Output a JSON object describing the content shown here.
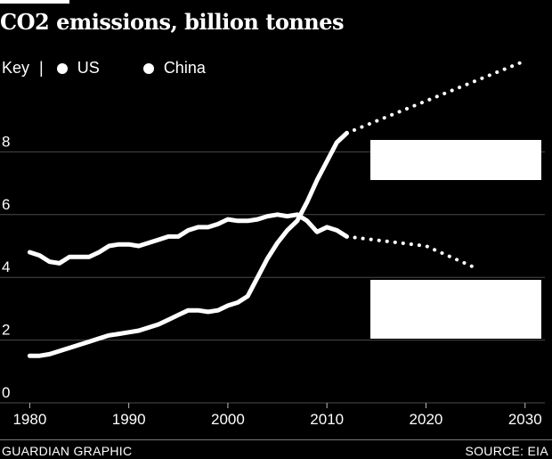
{
  "chart_data": {
    "type": "line",
    "title": "CO2 emissions, billion tonnes",
    "legend_key_label": "Key",
    "legend_separator": "|",
    "xlabel": "",
    "ylabel": "",
    "xlim": [
      1977,
      2032
    ],
    "ylim": [
      0,
      10
    ],
    "x_ticks": [
      1980,
      1990,
      2000,
      2010,
      2020,
      2030
    ],
    "y_ticks": [
      0,
      2,
      4,
      6,
      8
    ],
    "series": [
      {
        "name": "US",
        "color": "#ffffff",
        "historical": {
          "x": [
            1980,
            1981,
            1982,
            1983,
            1984,
            1985,
            1986,
            1987,
            1988,
            1989,
            1990,
            1991,
            1992,
            1993,
            1994,
            1995,
            1996,
            1997,
            1998,
            1999,
            2000,
            2001,
            2002,
            2003,
            2004,
            2005,
            2006,
            2007,
            2008,
            2009,
            2010,
            2011,
            2012
          ],
          "y": [
            4.8,
            4.7,
            4.5,
            4.45,
            4.65,
            4.65,
            4.65,
            4.8,
            5.0,
            5.05,
            5.05,
            5.0,
            5.1,
            5.2,
            5.3,
            5.3,
            5.5,
            5.6,
            5.6,
            5.7,
            5.85,
            5.8,
            5.8,
            5.85,
            5.95,
            6.0,
            5.95,
            6.0,
            5.8,
            5.45,
            5.6,
            5.5,
            5.3
          ]
        },
        "projection": {
          "x": [
            2012,
            2020,
            2025
          ],
          "y": [
            5.3,
            5.0,
            4.3
          ]
        }
      },
      {
        "name": "China",
        "color": "#ffffff",
        "historical": {
          "x": [
            1980,
            1981,
            1982,
            1983,
            1984,
            1985,
            1986,
            1987,
            1988,
            1989,
            1990,
            1991,
            1992,
            1993,
            1994,
            1995,
            1996,
            1997,
            1998,
            1999,
            2000,
            2001,
            2002,
            2003,
            2004,
            2005,
            2006,
            2007,
            2008,
            2009,
            2010,
            2011,
            2012
          ],
          "y": [
            1.5,
            1.5,
            1.55,
            1.65,
            1.75,
            1.85,
            1.95,
            2.05,
            2.15,
            2.2,
            2.25,
            2.3,
            2.4,
            2.5,
            2.65,
            2.8,
            2.95,
            2.95,
            2.9,
            2.95,
            3.1,
            3.2,
            3.4,
            4.0,
            4.6,
            5.1,
            5.5,
            5.8,
            6.4,
            7.1,
            7.7,
            8.3,
            8.6
          ]
        },
        "projection": {
          "x": [
            2012,
            2030
          ],
          "y": [
            8.6,
            10.9
          ]
        }
      }
    ],
    "source": "SOURCE: EIA",
    "credit": "GUARDIAN GRAPHIC"
  }
}
